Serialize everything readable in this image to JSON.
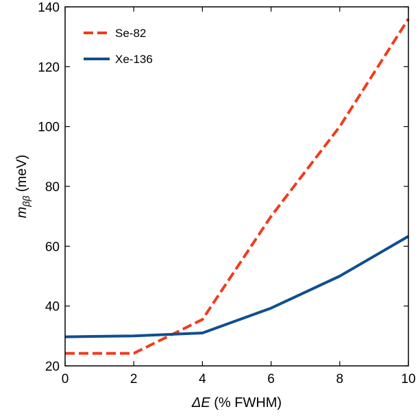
{
  "chart_data": {
    "type": "line",
    "title": "",
    "xlabel": {
      "italic": "ΔE",
      "rest": " (% FWHM)"
    },
    "ylabel": {
      "italic_base": "m",
      "italic_sub": "ββ",
      "rest": " (meV)"
    },
    "xlim": [
      0,
      10
    ],
    "ylim": [
      20,
      140
    ],
    "xticks": [
      0,
      2,
      4,
      6,
      8,
      10
    ],
    "yticks": [
      20,
      40,
      60,
      80,
      100,
      120,
      140
    ],
    "grid": false,
    "legend_position": "top-left",
    "series": [
      {
        "name": "Se-82",
        "color": "#f03c1e",
        "dash": "dashed",
        "x": [
          0,
          2,
          4,
          6,
          8,
          10
        ],
        "y": [
          24.2,
          24.2,
          35.5,
          70,
          100,
          136
        ]
      },
      {
        "name": "Xe-136",
        "color": "#0f4f8f",
        "dash": "solid",
        "x": [
          0,
          2,
          4,
          6,
          8,
          10
        ],
        "y": [
          29.7,
          30,
          31,
          39.3,
          50,
          63.3
        ]
      }
    ]
  }
}
